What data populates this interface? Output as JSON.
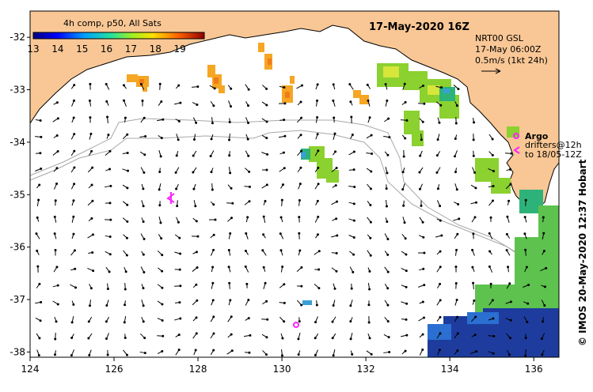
{
  "title": "17-May-2020 16Z",
  "colorbar": {
    "title": "4h comp, p50, All Sats",
    "ticks": [
      "13",
      "14",
      "15",
      "16",
      "17",
      "18",
      "19"
    ],
    "range": [
      13,
      20
    ]
  },
  "info": {
    "line1": "NRT00 GSL",
    "line2": "17-May 06:00Z",
    "line3": "0.5m/s (1kt 24h)"
  },
  "legend": {
    "argo_label": "Argo",
    "drifters_line1": "drifters@12h",
    "drifters_line2": "to 18/05-12Z"
  },
  "credit": "© IMOS 20-May-2020 12:37 Hobart",
  "axes": {
    "lon_ticks": [
      "124",
      "126",
      "128",
      "130",
      "132",
      "134",
      "136"
    ],
    "lat_ticks": [
      "-32",
      "-33",
      "-34",
      "-35",
      "-36",
      "-37",
      "-38"
    ],
    "lon_range": [
      124,
      136.6
    ],
    "lat_range": [
      -31.5,
      -38.1
    ]
  },
  "colors": {
    "land": "#f9c795",
    "argo": "#ff22ff",
    "bathy": "#a8a8a8"
  }
}
